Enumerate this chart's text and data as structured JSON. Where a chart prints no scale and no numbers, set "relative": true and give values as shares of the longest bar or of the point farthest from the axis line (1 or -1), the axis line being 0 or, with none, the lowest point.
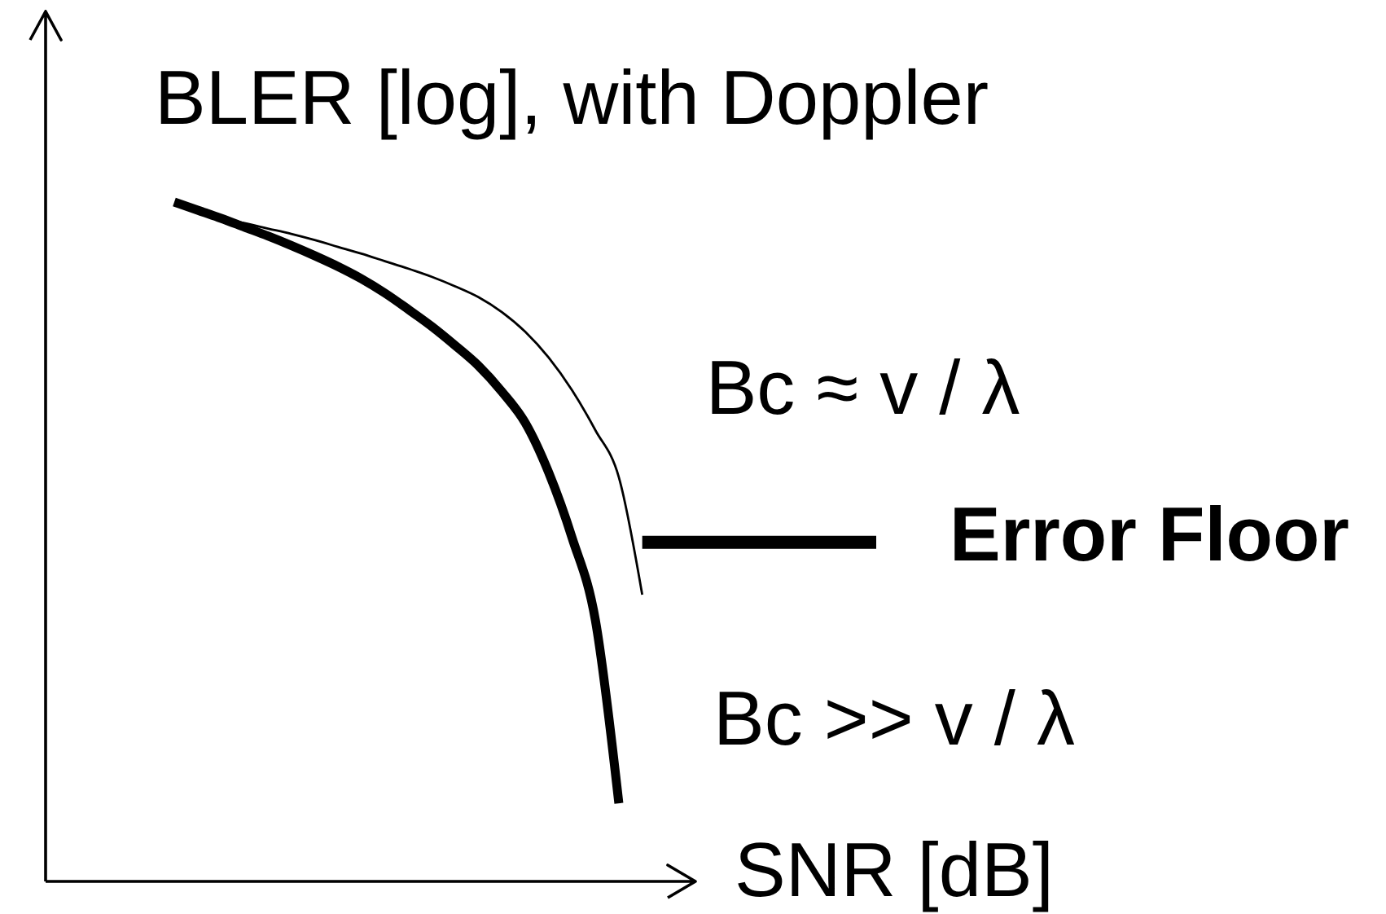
{
  "chart_data": {
    "type": "line",
    "relative": true,
    "ylabel": "BLER [log], with Doppler",
    "xlabel": "SNR [dB]",
    "categories": [
      null,
      null,
      null,
      null,
      null,
      null,
      null,
      null,
      null,
      null,
      null,
      null,
      null,
      null,
      null,
      null,
      null,
      null,
      null,
      null,
      null,
      null,
      null,
      null,
      null,
      null,
      null,
      null,
      null,
      null,
      null
    ],
    "series": [
      {
        "name": "Bc >> v / λ",
        "color": "#000000",
        "values": [
          1.0,
          0.988,
          0.976,
          0.963,
          0.95,
          0.936,
          0.921,
          0.905,
          0.887,
          0.866,
          0.842,
          0.817,
          0.789,
          0.759,
          0.721,
          0.675,
          0.602,
          0.506,
          0.384,
          0.115,
          null,
          null,
          null,
          null,
          null,
          null,
          null,
          null,
          null,
          null,
          null
        ]
      },
      {
        "name": "Bc ≈ v / λ",
        "color": "#000000",
        "values": [
          null,
          null,
          0.976,
          0.969,
          0.961,
          0.953,
          0.944,
          0.934,
          0.924,
          0.913,
          0.902,
          0.89,
          0.876,
          0.86,
          0.838,
          0.809,
          0.771,
          0.723,
          0.664,
          0.595,
          0.422,
          null,
          null,
          null,
          null,
          null,
          null,
          null,
          null,
          null,
          null
        ]
      },
      {
        "name": "Error Floor",
        "color": "#000000",
        "values": [
          null,
          null,
          null,
          null,
          null,
          null,
          null,
          null,
          null,
          null,
          null,
          null,
          null,
          null,
          null,
          null,
          null,
          null,
          null,
          null,
          0.499,
          0.499,
          0.499,
          0.499,
          0.499,
          0.499,
          0.499,
          0.499,
          0.499,
          0.499,
          0.499
        ]
      }
    ]
  }
}
